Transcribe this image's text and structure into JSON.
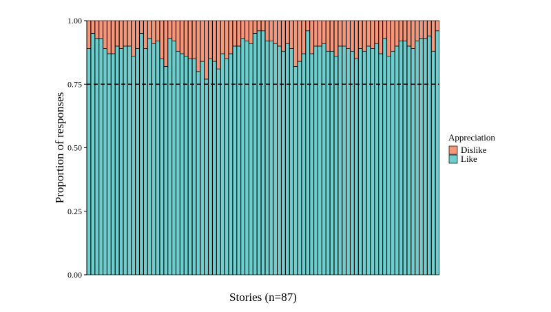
{
  "chart_data": {
    "type": "bar",
    "stacked": true,
    "xlabel": "Stories (n=87)",
    "ylabel": "Proportion of responses",
    "ylim": [
      0,
      1
    ],
    "yticks": [
      "0.00",
      "0.25",
      "0.50",
      "0.75",
      "1.00"
    ],
    "ytick_values": [
      0,
      0.25,
      0.5,
      0.75,
      1
    ],
    "reference_line": 0.75,
    "grid": false,
    "legend": {
      "title": "Appreciation",
      "placement": "right",
      "entries": [
        "Dislike",
        "Like"
      ]
    },
    "series": [
      {
        "name": "Like",
        "color": "#6ecdcd",
        "values": [
          0.89,
          0.95,
          0.93,
          0.93,
          0.89,
          0.87,
          0.87,
          0.9,
          0.89,
          0.9,
          0.9,
          0.86,
          0.89,
          0.95,
          0.89,
          0.93,
          0.91,
          0.92,
          0.85,
          0.82,
          0.93,
          0.92,
          0.88,
          0.87,
          0.86,
          0.85,
          0.85,
          0.8,
          0.84,
          0.77,
          0.85,
          0.84,
          0.81,
          0.87,
          0.85,
          0.87,
          0.9,
          0.9,
          0.93,
          0.92,
          0.91,
          0.95,
          0.96,
          0.96,
          0.92,
          0.92,
          0.91,
          0.9,
          0.88,
          0.91,
          0.89,
          0.82,
          0.84,
          0.87,
          0.96,
          0.87,
          0.9,
          0.9,
          0.91,
          0.88,
          0.88,
          0.86,
          0.9,
          0.9,
          0.89,
          0.88,
          0.85,
          0.89,
          0.88,
          0.9,
          0.89,
          0.91,
          0.87,
          0.93,
          0.86,
          0.88,
          0.9,
          0.92,
          0.92,
          0.9,
          0.89,
          0.92,
          0.93,
          0.93,
          0.94,
          0.88,
          0.96
        ]
      },
      {
        "name": "Dislike",
        "color": "#f4977b",
        "values": [
          0.11,
          0.05,
          0.07,
          0.07,
          0.11,
          0.13,
          0.13,
          0.1,
          0.11,
          0.1,
          0.1,
          0.14,
          0.11,
          0.05,
          0.11,
          0.07,
          0.09,
          0.08,
          0.15,
          0.18,
          0.07,
          0.08,
          0.12,
          0.13,
          0.14,
          0.15,
          0.15,
          0.2,
          0.16,
          0.23,
          0.15,
          0.16,
          0.19,
          0.13,
          0.15,
          0.13,
          0.1,
          0.1,
          0.07,
          0.08,
          0.09,
          0.05,
          0.04,
          0.04,
          0.08,
          0.08,
          0.09,
          0.1,
          0.12,
          0.09,
          0.11,
          0.18,
          0.16,
          0.13,
          0.04,
          0.13,
          0.1,
          0.1,
          0.09,
          0.12,
          0.12,
          0.14,
          0.1,
          0.1,
          0.11,
          0.12,
          0.15,
          0.11,
          0.12,
          0.1,
          0.11,
          0.09,
          0.13,
          0.07,
          0.14,
          0.12,
          0.1,
          0.08,
          0.08,
          0.1,
          0.11,
          0.08,
          0.07,
          0.07,
          0.06,
          0.12,
          0.04
        ]
      }
    ]
  }
}
